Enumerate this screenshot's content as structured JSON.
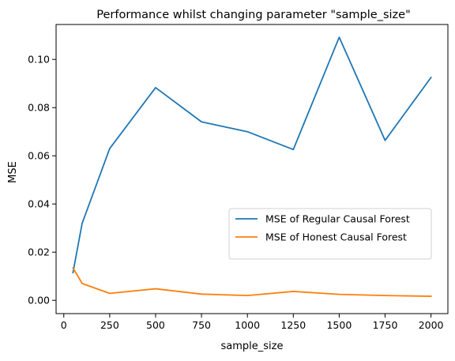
{
  "chart_data": {
    "type": "line",
    "title": "Performance whilst changing parameter \"sample_size\"",
    "xlabel": "sample_size",
    "ylabel": "MSE",
    "xlim": [
      -42,
      2092
    ],
    "ylim": [
      -0.0055,
      0.1145
    ],
    "xticks": [
      0,
      250,
      500,
      750,
      1000,
      1250,
      1500,
      1750,
      2000
    ],
    "yticks": [
      0.0,
      0.02,
      0.04,
      0.06,
      0.08,
      0.1
    ],
    "ytick_labels": [
      "0.00",
      "0.02",
      "0.04",
      "0.06",
      "0.08",
      "0.10"
    ],
    "grid": false,
    "legend_position": "center-right",
    "series": [
      {
        "name": "MSE of Regular Causal Forest",
        "color": "#1f77b4",
        "x": [
          50,
          100,
          250,
          500,
          750,
          1000,
          1250,
          1500,
          1750,
          2000
        ],
        "y": [
          0.0115,
          0.032,
          0.063,
          0.0883,
          0.0741,
          0.07,
          0.0626,
          0.1092,
          0.0664,
          0.0925
        ]
      },
      {
        "name": "MSE of Honest Causal Forest",
        "color": "#ff7f0e",
        "x": [
          50,
          100,
          250,
          500,
          750,
          1000,
          1250,
          1500,
          1750,
          2000
        ],
        "y": [
          0.0135,
          0.007,
          0.0029,
          0.0048,
          0.0026,
          0.002,
          0.0037,
          0.0025,
          0.002,
          0.0017
        ]
      }
    ]
  }
}
